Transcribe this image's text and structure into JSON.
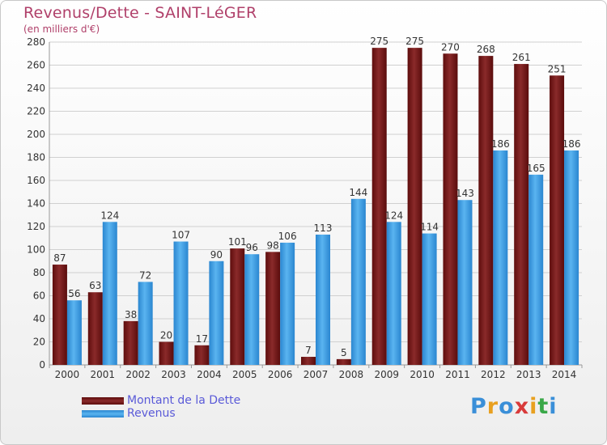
{
  "chart_data": {
    "type": "bar",
    "title": "Revenus/Dette - SAINT-LéGER",
    "subtitle": "(en milliers d'€)",
    "categories": [
      "2000",
      "2001",
      "2002",
      "2003",
      "2004",
      "2005",
      "2006",
      "2007",
      "2008",
      "2009",
      "2010",
      "2011",
      "2012",
      "2013",
      "2014"
    ],
    "series": [
      {
        "name": "Montant de la Dette",
        "color": "#7a1a1a",
        "values": [
          87,
          63,
          38,
          20,
          17,
          101,
          98,
          7,
          5,
          275,
          275,
          270,
          268,
          261,
          251
        ]
      },
      {
        "name": "Revenus",
        "color": "#3a9ee4",
        "values": [
          56,
          124,
          72,
          107,
          90,
          96,
          106,
          113,
          144,
          124,
          114,
          143,
          186,
          165,
          186
        ]
      }
    ],
    "ylim": [
      0,
      280
    ],
    "yticks": [
      0,
      20,
      40,
      60,
      80,
      100,
      120,
      140,
      160,
      180,
      200,
      220,
      240,
      260,
      280
    ],
    "grid": true,
    "legend_position": "bottom-left"
  },
  "logo": {
    "letters": [
      "P",
      "r",
      "o",
      "x",
      "i",
      "t",
      "i"
    ],
    "colors": [
      "#3a8fd8",
      "#e8a020",
      "#3a8fd8",
      "#d83a3a",
      "#e8a020",
      "#3aa848",
      "#3a8fd8"
    ]
  }
}
